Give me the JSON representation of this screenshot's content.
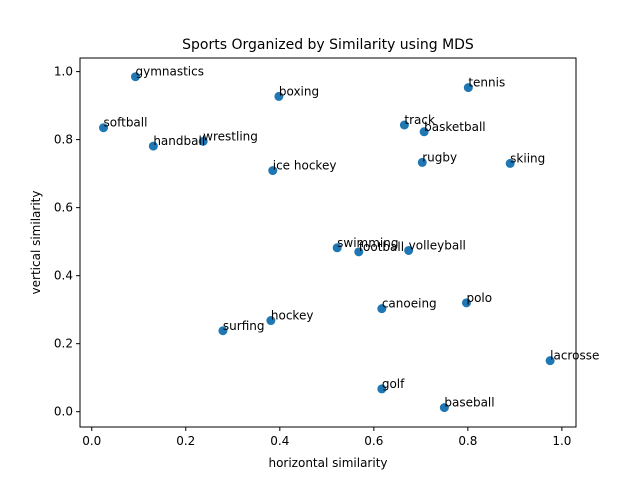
{
  "chart_data": {
    "type": "scatter",
    "title": "Sports Organized by Similarity using MDS",
    "xlabel": "horizontal similarity",
    "ylabel": "vertical similarity",
    "xlim": [
      -0.025,
      1.03
    ],
    "ylim": [
      -0.045,
      1.04
    ],
    "xticks": [
      0.0,
      0.2,
      0.4,
      0.6,
      0.8,
      1.0
    ],
    "yticks": [
      0.0,
      0.2,
      0.4,
      0.6,
      0.8,
      1.0
    ],
    "tick_labels_x": [
      "0.0",
      "0.2",
      "0.4",
      "0.6",
      "0.8",
      "1.0"
    ],
    "tick_labels_y": [
      "0.0",
      "0.2",
      "0.4",
      "0.6",
      "0.8",
      "1.0"
    ],
    "grid": false,
    "marker_color": "#1f77b4",
    "points": [
      {
        "label": "gymnastics",
        "x": 0.093,
        "y": 0.985
      },
      {
        "label": "boxing",
        "x": 0.398,
        "y": 0.927
      },
      {
        "label": "tennis",
        "x": 0.801,
        "y": 0.953
      },
      {
        "label": "softball",
        "x": 0.025,
        "y": 0.835
      },
      {
        "label": "handball",
        "x": 0.131,
        "y": 0.781
      },
      {
        "label": "wrestling",
        "x": 0.237,
        "y": 0.795
      },
      {
        "label": "track",
        "x": 0.665,
        "y": 0.843
      },
      {
        "label": "basketball",
        "x": 0.707,
        "y": 0.823
      },
      {
        "label": "ice hockey",
        "x": 0.385,
        "y": 0.709
      },
      {
        "label": "rugby",
        "x": 0.703,
        "y": 0.733
      },
      {
        "label": "skiing",
        "x": 0.89,
        "y": 0.73
      },
      {
        "label": "swimming",
        "x": 0.522,
        "y": 0.482
      },
      {
        "label": "football",
        "x": 0.568,
        "y": 0.47
      },
      {
        "label": "volleyball",
        "x": 0.674,
        "y": 0.474
      },
      {
        "label": "polo",
        "x": 0.797,
        "y": 0.32
      },
      {
        "label": "canoeing",
        "x": 0.617,
        "y": 0.303
      },
      {
        "label": "hockey",
        "x": 0.381,
        "y": 0.268
      },
      {
        "label": "surfing",
        "x": 0.279,
        "y": 0.238
      },
      {
        "label": "lacrosse",
        "x": 0.975,
        "y": 0.15
      },
      {
        "label": "golf",
        "x": 0.617,
        "y": 0.067
      },
      {
        "label": "baseball",
        "x": 0.75,
        "y": 0.012
      }
    ]
  }
}
